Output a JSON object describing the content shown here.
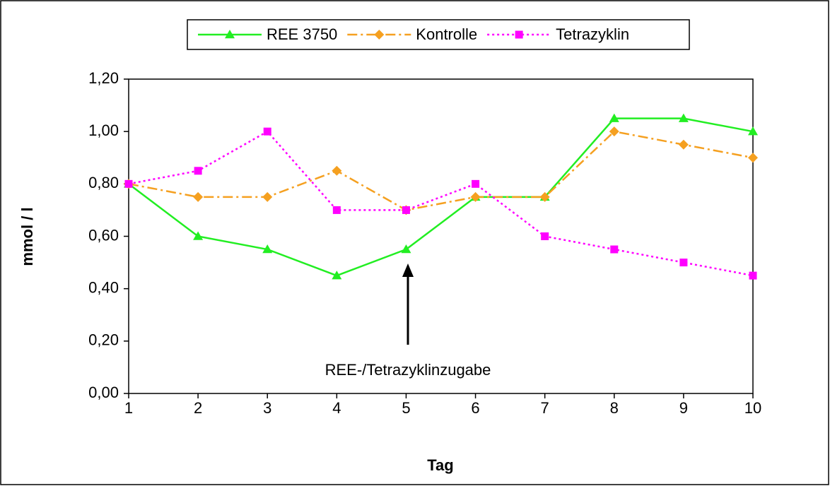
{
  "chart_data": {
    "type": "line",
    "x_label": "Tag",
    "y_label": "mmol / l",
    "x": [
      1,
      2,
      3,
      4,
      5,
      6,
      7,
      8,
      9,
      10
    ],
    "series": [
      {
        "name": "REE 3750",
        "color": "#22ee22",
        "line_style": "solid",
        "marker": "triangle",
        "values": [
          0.8,
          0.6,
          0.55,
          0.45,
          0.55,
          0.75,
          0.75,
          1.05,
          1.05,
          1.0
        ]
      },
      {
        "name": "Kontrolle",
        "color": "#f5a020",
        "line_style": "dashdot",
        "marker": "diamond",
        "values": [
          0.8,
          0.75,
          0.75,
          0.85,
          0.7,
          0.75,
          0.75,
          1.0,
          0.95,
          0.9
        ]
      },
      {
        "name": "Tetrazyklin",
        "color": "#ff00ff",
        "line_style": "dotted",
        "marker": "square",
        "values": [
          0.8,
          0.85,
          1.0,
          0.7,
          0.7,
          0.8,
          0.6,
          0.55,
          0.5,
          0.45
        ]
      }
    ],
    "xlim": [
      1,
      10
    ],
    "xticks": [
      1,
      2,
      3,
      4,
      5,
      6,
      7,
      8,
      9,
      10
    ],
    "ylim": [
      0,
      1.2
    ],
    "yticks": [
      {
        "value": 0,
        "label": "0,00"
      },
      {
        "value": 0.2,
        "label": "0,20"
      },
      {
        "value": 0.4,
        "label": "0,40"
      },
      {
        "value": 0.6,
        "label": "0,60"
      },
      {
        "value": 0.8,
        "label": "0,80"
      },
      {
        "value": 1.0,
        "label": "1,00"
      },
      {
        "value": 1.2,
        "label": "1,20"
      }
    ],
    "grid": false,
    "legend": "top",
    "annotations": [
      "REE-/Tetrazyklinzugabe"
    ]
  }
}
